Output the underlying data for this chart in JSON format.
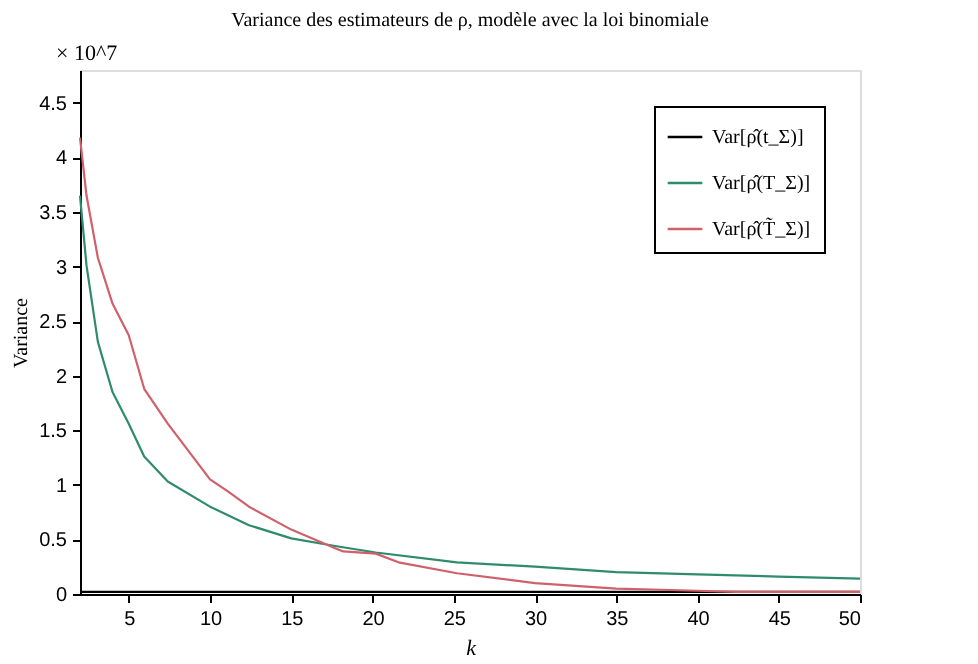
{
  "chart_data": {
    "type": "line",
    "title": "Variance des estimateurs de ρ, modèle avec la loi binomiale",
    "xlabel": "k",
    "ylabel": "Variance",
    "annotations": [
      "× 10^7"
    ],
    "xlim": [
      2,
      50
    ],
    "xticks": [
      5,
      10,
      15,
      20,
      25,
      30,
      35,
      40,
      45,
      50
    ],
    "ylim": [
      0,
      4.8
    ],
    "yticks": [
      0,
      0.5,
      1,
      1.5,
      2,
      2.5,
      3,
      3.5,
      4,
      4.5
    ],
    "grid": false,
    "legend": "top right",
    "line_style": "solid",
    "marker": "none",
    "series": [
      {
        "name": "Var[ρ̂(t_Σ)]",
        "color": "#000000",
        "x": [
          2,
          10,
          20,
          30,
          40,
          50
        ],
        "values": [
          0.02,
          0.02,
          0.02,
          0.02,
          0.02,
          0.02
        ]
      },
      {
        "name": "Var[ρ̂(T_Σ)]",
        "color": "#2e8b6e",
        "x": [
          2,
          2.4,
          3.1,
          4,
          5,
          5.95,
          7.4,
          10,
          12.4,
          15,
          17.7,
          20.2,
          25.2,
          30,
          35,
          40,
          45,
          50
        ],
        "values": [
          3.65,
          3.01,
          2.31,
          1.85,
          1.56,
          1.26,
          1.03,
          0.8,
          0.63,
          0.51,
          0.44,
          0.38,
          0.29,
          0.25,
          0.2,
          0.18,
          0.16,
          0.14
        ]
      },
      {
        "name": "Var[ρ̂(T̃_Σ)]",
        "color": "#d0606a",
        "x": [
          2,
          2.4,
          3.1,
          4,
          5,
          5.95,
          7.4,
          10,
          11.1,
          12.4,
          15,
          17.7,
          18.2,
          20.2,
          21.6,
          25.2,
          30,
          35,
          40,
          42.4,
          50
        ],
        "values": [
          4.18,
          3.65,
          3.08,
          2.66,
          2.37,
          1.88,
          1.56,
          1.05,
          0.94,
          0.8,
          0.59,
          0.42,
          0.39,
          0.37,
          0.29,
          0.19,
          0.1,
          0.05,
          0.03,
          0.02,
          0.02
        ]
      }
    ]
  }
}
